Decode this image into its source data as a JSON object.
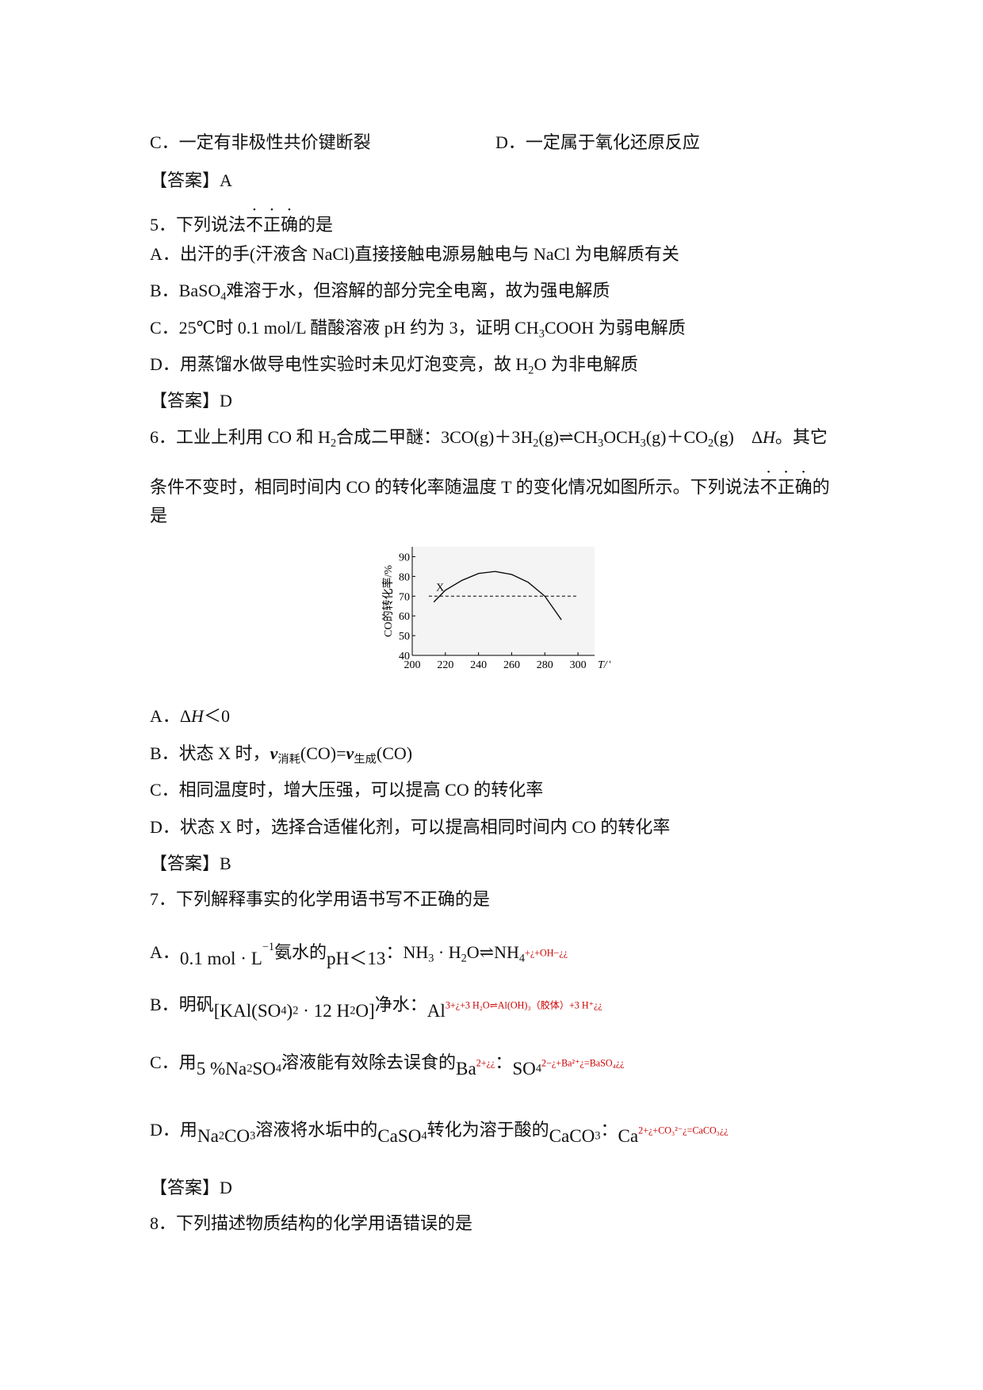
{
  "lines": [
    {
      "runs": [
        "C．一定有非极性共价键断裂",
        {
          "text": "D．一定属于氧化还原反应",
          "style": "col2"
        }
      ]
    },
    {
      "runs": [
        "【答案】A"
      ]
    },
    {
      "runs": [
        "5．下列说法",
        {
          "text": "不正确",
          "style": "dot"
        },
        "的是"
      ]
    },
    {
      "runs": [
        "A．出汗的手(汗液含 NaCl)直接接触电源易触电与 NaCl 为电解质有关"
      ]
    },
    {
      "runs": [
        "B．BaSO",
        {
          "text": "4",
          "style": "sub"
        },
        "难溶于水，但溶解的部分完全电离，故为强电解质"
      ]
    },
    {
      "runs": [
        "C．25℃时 0.1 mol/L 醋酸溶液 pH 约为 3，证明 CH",
        {
          "text": "3",
          "style": "sub"
        },
        "COOH 为弱电解质"
      ]
    },
    {
      "runs": [
        "D．用蒸馏水做导电性实验时未见灯泡变亮，故 H",
        {
          "text": "2",
          "style": "sub"
        },
        "O 为非电解质"
      ]
    },
    {
      "runs": [
        "【答案】D"
      ]
    },
    {
      "runs": [
        "6．工业上利用 CO 和 H",
        {
          "text": "2",
          "style": "sub"
        },
        "合成二甲醚：3CO(g)＋3H",
        {
          "text": "2",
          "style": "sub"
        },
        "(g)⇌CH",
        {
          "text": "3",
          "style": "sub"
        },
        "OCH",
        {
          "text": "3",
          "style": "sub"
        },
        "(g)＋CO",
        {
          "text": "2",
          "style": "sub"
        },
        "(g)　Δ",
        {
          "text": "H",
          "style": "italic"
        },
        "。其它"
      ]
    },
    {
      "runs": [
        "条件不变时，相同时间内 CO 的转化率随温度 T 的变化情况如图所示。下列说法",
        {
          "text": "不正确",
          "style": "dot"
        },
        "的"
      ]
    },
    {
      "runs": [
        "是"
      ]
    },
    {
      "runs": [
        "A．Δ",
        {
          "text": "H",
          "style": "italic"
        },
        "＜0"
      ]
    },
    {
      "runs": [
        "B．状态 X 时，",
        {
          "text": "v",
          "style": "bold"
        },
        {
          "text": "消耗",
          "style": "sub"
        },
        "(CO)=",
        {
          "text": "v",
          "style": "bold"
        },
        {
          "text": "生成",
          "style": "sub"
        },
        "(CO)"
      ]
    },
    {
      "runs": [
        "C．相同温度时，增大压强，可以提高 CO 的转化率"
      ]
    },
    {
      "runs": [
        "D．状态 X 时，选择合适催化剂，可以提高相同时间内 CO 的转化率"
      ]
    },
    {
      "runs": [
        "【答案】B"
      ]
    },
    {
      "runs": [
        "7．下列解释事实的化学用语书写不正确的是"
      ]
    },
    {
      "runs": [
        "A．",
        {
          "text": "0.1 mol · L",
          "style": "low"
        },
        {
          "text": "−1",
          "style": "sup"
        },
        "氨水的",
        {
          "text": "pH＜13",
          "style": "low"
        },
        "：NH",
        {
          "text": "3",
          "style": "sub"
        },
        " · H",
        {
          "text": "2",
          "style": "sub"
        },
        "O⇌NH",
        {
          "text": "4",
          "style": "sub"
        },
        {
          "text": "+¿+OH−¿¿",
          "style": "red"
        }
      ]
    },
    {
      "runs": [
        "B．明矾",
        {
          "text": "[KAl(SO",
          "style": "low"
        },
        {
          "text": "4",
          "style": "sub"
        },
        {
          "text": ")",
          "style": "low"
        },
        {
          "text": "2",
          "style": "sub"
        },
        {
          "text": " · 12 H",
          "style": "low"
        },
        {
          "text": "2",
          "style": "sub"
        },
        {
          "text": "O]",
          "style": "low"
        },
        "净水：",
        {
          "text": "Al",
          "style": "low"
        },
        {
          "text": "3+¿+3 H₂O⇌Al(OH)₃（胶体）+3 H⁺¿¿",
          "style": "red"
        }
      ]
    },
    {
      "runs": [
        "C．用",
        {
          "text": "5 %Na",
          "style": "low"
        },
        {
          "text": "2",
          "style": "sub"
        },
        {
          "text": "SO",
          "style": "low"
        },
        {
          "text": "4",
          "style": "sub"
        },
        "溶液能有效除去误食的",
        {
          "text": "Ba",
          "style": "low"
        },
        {
          "text": "2+¿¿",
          "style": "red"
        },
        "：",
        {
          "text": "SO",
          "style": "low"
        },
        {
          "text": "4",
          "style": "sub"
        },
        {
          "text": "2−¿+Ba²⁺¿=BaSO₄¿¿",
          "style": "red"
        }
      ]
    },
    {
      "runs": [
        "D．用",
        {
          "text": "Na",
          "style": "low"
        },
        {
          "text": "2",
          "style": "sub"
        },
        {
          "text": "CO",
          "style": "low"
        },
        {
          "text": "3",
          "style": "sub"
        },
        "溶液将水垢中的",
        {
          "text": "CaSO",
          "style": "low"
        },
        {
          "text": "4",
          "style": "sub"
        },
        "转化为溶于酸的",
        {
          "text": "CaCO",
          "style": "low"
        },
        {
          "text": "3",
          "style": "sub"
        },
        "：",
        {
          "text": "Ca",
          "style": "low"
        },
        {
          "text": "2+¿+CO₃²⁻¿=CaCO₃¿¿",
          "style": "red"
        }
      ]
    },
    {
      "runs": [
        "【答案】D"
      ]
    },
    {
      "runs": [
        "8．下列描述物质结构的化学用语错误的是"
      ]
    }
  ],
  "figure": {
    "ylabel": "CO的转化率/%",
    "xlabel": "T/℃",
    "point_label": "X",
    "xlim": [
      200,
      310
    ],
    "ylim": [
      40,
      95
    ],
    "xticks": [
      200,
      220,
      240,
      260,
      280,
      300
    ],
    "yticks": [
      40,
      50,
      60,
      70,
      80,
      90
    ],
    "reference": 70,
    "x": [
      213,
      220,
      230,
      240,
      250,
      260,
      270,
      280,
      290
    ],
    "values": [
      67,
      73,
      78,
      81.5,
      82.5,
      81,
      77,
      70,
      58
    ]
  }
}
